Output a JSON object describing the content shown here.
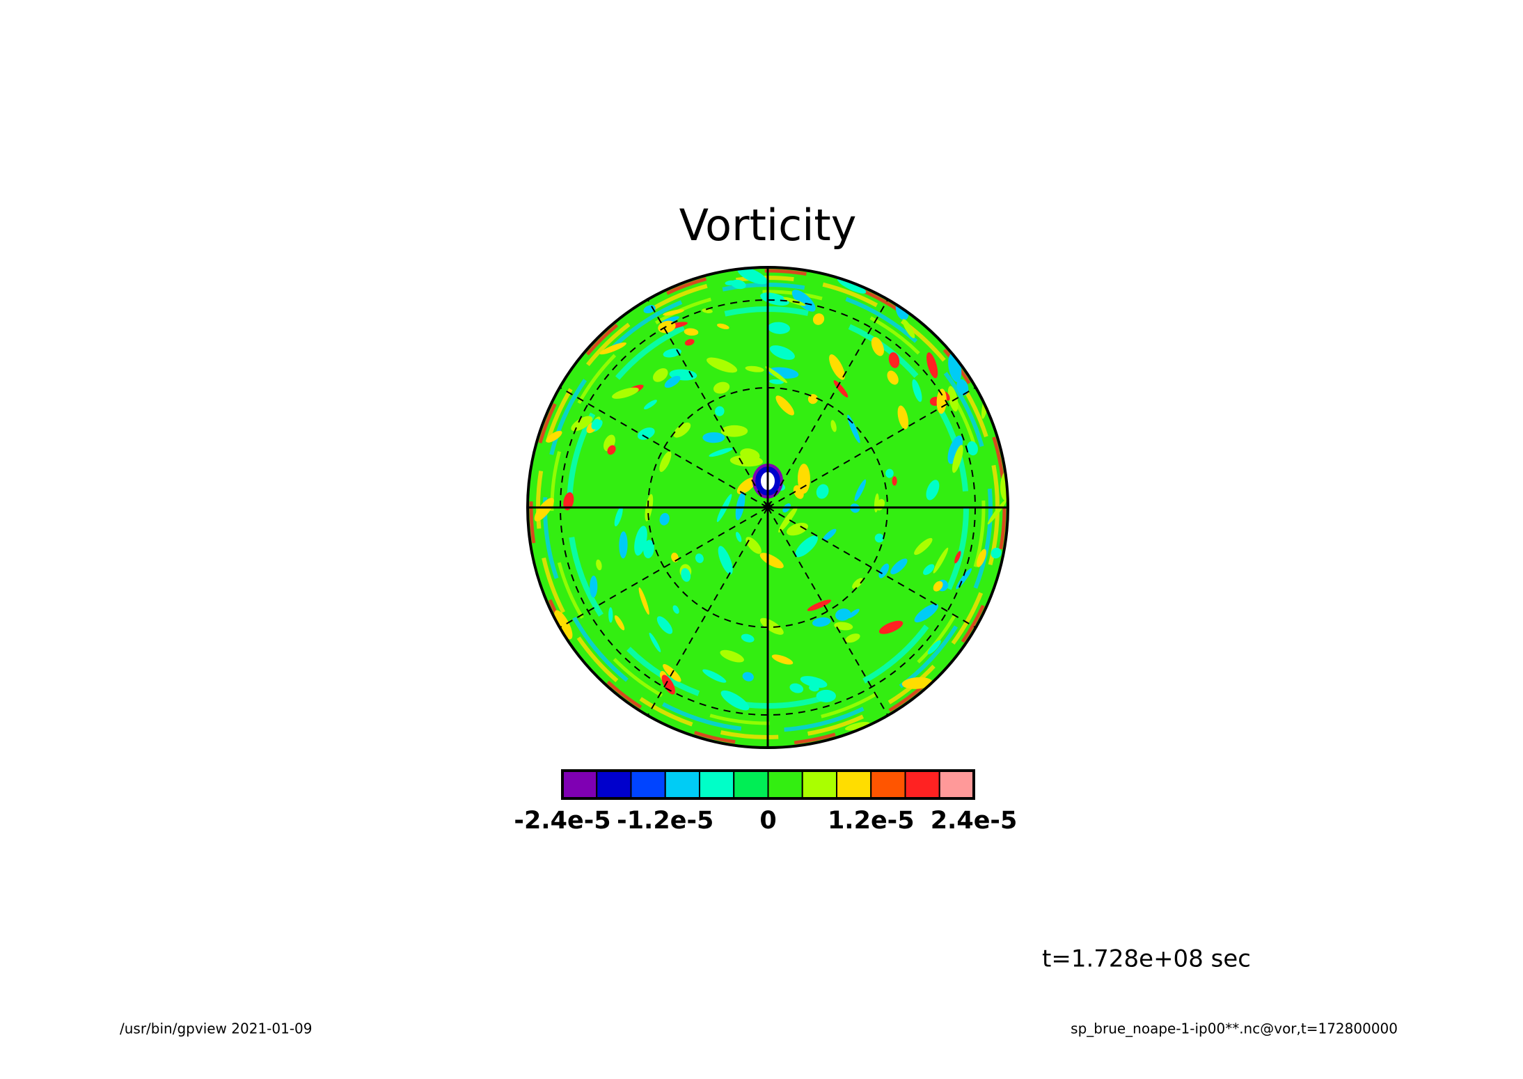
{
  "chart_data": {
    "type": "contour",
    "title": "Vorticity",
    "colorbar": {
      "colors": [
        "#7f00b3",
        "#0000cc",
        "#0044ff",
        "#00ccf5",
        "#00ffc8",
        "#00ee55",
        "#33ee11",
        "#aaff00",
        "#ffdd00",
        "#ff5500",
        "#ff2222",
        "#ff9999"
      ],
      "bins": [
        -2.4e-05,
        -2e-05,
        -1.6e-05,
        -1.2e-05,
        -8e-06,
        -4e-06,
        0,
        4e-06,
        8e-06,
        1.2e-05,
        1.6e-05,
        2e-05,
        2.4e-05
      ],
      "lim": [
        -2.4e-05,
        2.4e-05
      ],
      "ticks": [
        {
          "value": -2.4e-05,
          "label": "-2.4e-5"
        },
        {
          "value": -1.2e-05,
          "label": "-1.2e-5"
        },
        0,
        {
          "value": 1.2e-05,
          "label": "1.2e-5"
        },
        {
          "value": 2.4e-05,
          "label": "2.4e-5"
        }
      ]
    },
    "annotations": [
      "t=1.728e+08 sec",
      "/usr/bin/gpview  2021-01-09",
      "sp_brue_noape-1-ip00**.nc@vor,t=172800000"
    ]
  }
}
